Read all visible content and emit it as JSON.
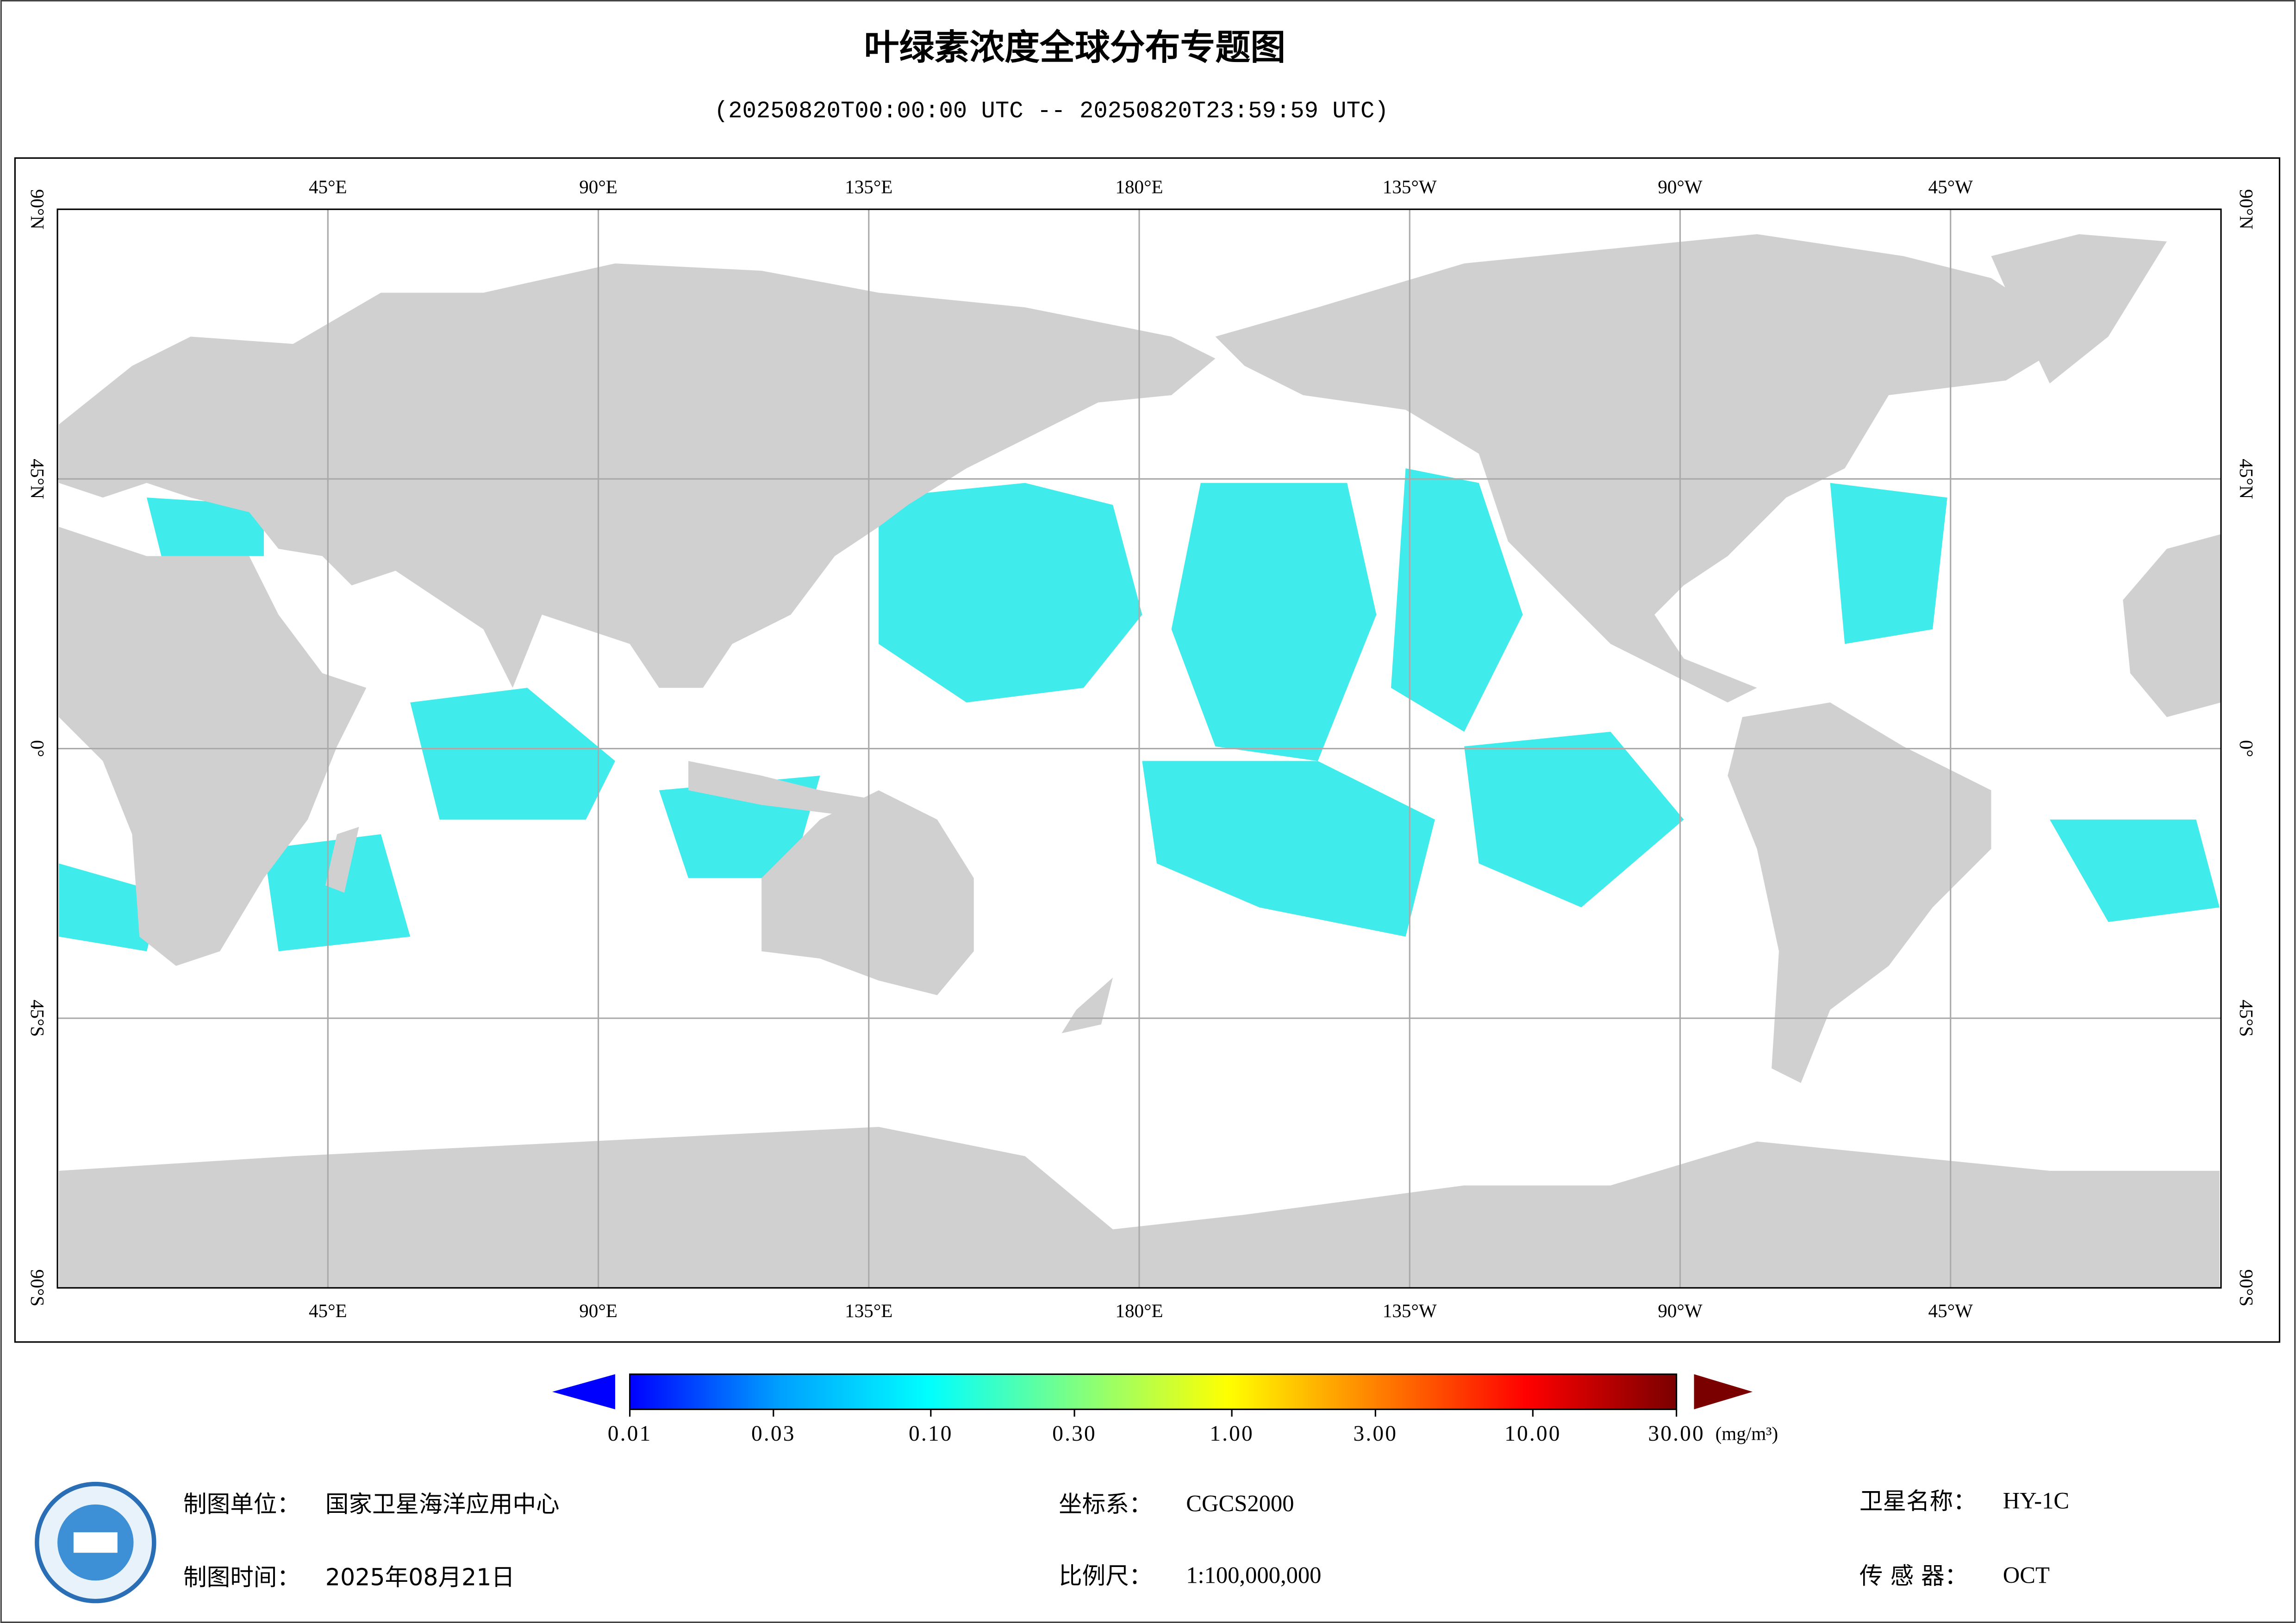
{
  "header": {
    "title": "叶绿素浓度全球分布专题图",
    "subtitle": "(20250820T00:00:00 UTC -- 20250820T23:59:59 UTC)"
  },
  "map": {
    "lon_range": [
      0,
      360
    ],
    "lat_range": [
      -90,
      90
    ],
    "lon_ticks": [
      {
        "value": 45,
        "label": "45°E"
      },
      {
        "value": 90,
        "label": "90°E"
      },
      {
        "value": 135,
        "label": "135°E"
      },
      {
        "value": 180,
        "label": "180°E"
      },
      {
        "value": 225,
        "label": "135°W"
      },
      {
        "value": 270,
        "label": "90°W"
      },
      {
        "value": 315,
        "label": "45°W"
      }
    ],
    "lat_ticks": [
      {
        "value": 90,
        "label": "90°N"
      },
      {
        "value": 45,
        "label": "45°N"
      },
      {
        "value": 0,
        "label": "0°"
      },
      {
        "value": -45,
        "label": "45°S"
      },
      {
        "value": -90,
        "label": "90°S"
      }
    ]
  },
  "colorbar": {
    "scale": "log",
    "range": [
      0.01,
      30
    ],
    "colors": [
      "#0000ff",
      "#00a0ff",
      "#00ffff",
      "#80ff80",
      "#ffff00",
      "#ff8000",
      "#ff0000",
      "#7a0000"
    ],
    "ticks": [
      0.01,
      0.03,
      {
        "value": 0.1,
        "label": "0.10"
      },
      {
        "value": 0.3,
        "label": "0.30"
      },
      {
        "value": 1,
        "label": "1.00"
      },
      {
        "value": 3,
        "label": "3.00"
      },
      {
        "value": 10,
        "label": "10.00"
      },
      {
        "value": 30,
        "label": "30.00"
      }
    ],
    "unit": "(mg/m³)"
  },
  "footer": {
    "org_label": "制图单位：",
    "org": "国家卫星海洋应用中心",
    "date_label": "制图时间：",
    "date": "2025年08月21日",
    "crs_label": "坐标系：",
    "crs": "CGCS2000",
    "scale_label": "比例尺：",
    "scale": "1:100,000,000",
    "satellite_label": "卫星名称：",
    "satellite": "HY-1C",
    "sensor_label": "传 感 器：",
    "sensor": "OCT"
  }
}
